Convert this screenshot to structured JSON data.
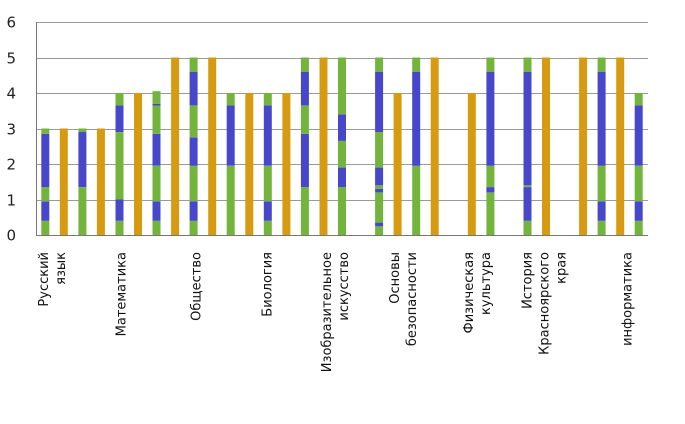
{
  "chart_data": {
    "type": "bar",
    "ylim": [
      0,
      6
    ],
    "yticks": [
      0,
      1,
      2,
      3,
      4,
      5,
      6
    ],
    "grid": true,
    "legend": "none",
    "colors": {
      "green": "#73b43c",
      "blue": "#4747cc",
      "orange": "#d79b12"
    },
    "category_labels": [
      [
        "Русский",
        "язык"
      ],
      [
        "Математика"
      ],
      [
        "Общество"
      ],
      [
        "Биология"
      ],
      [
        "Изобразительное",
        "искусство"
      ],
      [
        "Основы",
        "безопасности"
      ],
      [
        "Физическая",
        "культура"
      ],
      [
        "История",
        "Красноярского",
        "края"
      ],
      [
        "информатика"
      ]
    ],
    "stacked_columns": [
      [
        {
          "c": "green",
          "v": 0.4
        },
        {
          "c": "blue",
          "v": 0.55
        },
        {
          "c": "green",
          "v": 0.4
        },
        {
          "c": "blue",
          "v": 1.5
        },
        {
          "c": "green",
          "v": 0.15
        }
      ],
      [
        {
          "c": "orange",
          "v": 3
        }
      ],
      [
        {
          "c": "green",
          "v": 1.35
        },
        {
          "c": "blue",
          "v": 1.55
        },
        {
          "c": "green",
          "v": 0.1
        }
      ],
      [
        {
          "c": "orange",
          "v": 3
        }
      ],
      [
        {
          "c": "green",
          "v": 0.4
        },
        {
          "c": "blue",
          "v": 0.6
        },
        {
          "c": "green",
          "v": 1.9
        },
        {
          "c": "blue",
          "v": 0.75
        },
        {
          "c": "green",
          "v": 0.35
        }
      ],
      [
        {
          "c": "orange",
          "v": 4
        }
      ],
      [
        {
          "c": "green",
          "v": 0.4
        },
        {
          "c": "blue",
          "v": 0.55
        },
        {
          "c": "green",
          "v": 1.0
        },
        {
          "c": "blue",
          "v": 0.9
        },
        {
          "c": "green",
          "v": 0.8
        },
        {
          "c": "blue",
          "v": 0.05
        },
        {
          "c": "green",
          "v": 0.35
        }
      ],
      [
        {
          "c": "orange",
          "v": 5
        }
      ],
      [
        {
          "c": "green",
          "v": 0.4
        },
        {
          "c": "blue",
          "v": 0.55
        },
        {
          "c": "green",
          "v": 1.0
        },
        {
          "c": "blue",
          "v": 0.8
        },
        {
          "c": "green",
          "v": 0.9
        },
        {
          "c": "blue",
          "v": 0.95
        },
        {
          "c": "green",
          "v": 0.4
        }
      ],
      [
        {
          "c": "orange",
          "v": 5
        }
      ],
      [
        {
          "c": "green",
          "v": 1.95
        },
        {
          "c": "blue",
          "v": 1.7
        },
        {
          "c": "green",
          "v": 0.35
        }
      ],
      [
        {
          "c": "orange",
          "v": 4
        }
      ],
      [
        {
          "c": "green",
          "v": 0.4
        },
        {
          "c": "blue",
          "v": 0.55
        },
        {
          "c": "green",
          "v": 1.0
        },
        {
          "c": "blue",
          "v": 1.7
        },
        {
          "c": "green",
          "v": 0.35
        }
      ],
      [
        {
          "c": "orange",
          "v": 4
        }
      ],
      [
        {
          "c": "green",
          "v": 1.35
        },
        {
          "c": "blue",
          "v": 1.5
        },
        {
          "c": "green",
          "v": 0.8
        },
        {
          "c": "blue",
          "v": 0.95
        },
        {
          "c": "green",
          "v": 0.4
        }
      ],
      [
        {
          "c": "orange",
          "v": 5
        }
      ],
      [
        {
          "c": "green",
          "v": 1.35
        },
        {
          "c": "blue",
          "v": 0.55
        },
        {
          "c": "green",
          "v": 0.75
        },
        {
          "c": "blue",
          "v": 0.75
        },
        {
          "c": "green",
          "v": 1.6
        }
      ],
      [],
      [
        {
          "c": "green",
          "v": 0.25
        },
        {
          "c": "blue",
          "v": 0.1
        },
        {
          "c": "green",
          "v": 0.85
        },
        {
          "c": "blue",
          "v": 0.1
        },
        {
          "c": "green",
          "v": 0.1
        },
        {
          "c": "blue",
          "v": 0.5
        },
        {
          "c": "green",
          "v": 1.0
        },
        {
          "c": "blue",
          "v": 1.7
        },
        {
          "c": "green",
          "v": 0.4
        }
      ],
      [
        {
          "c": "orange",
          "v": 4
        }
      ],
      [
        {
          "c": "green",
          "v": 1.95
        },
        {
          "c": "blue",
          "v": 2.65
        },
        {
          "c": "green",
          "v": 0.4
        }
      ],
      [
        {
          "c": "orange",
          "v": 5
        }
      ],
      [],
      [
        {
          "c": "orange",
          "v": 4
        }
      ],
      [
        {
          "c": "green",
          "v": 1.2
        },
        {
          "c": "blue",
          "v": 0.15
        },
        {
          "c": "green",
          "v": 0.6
        },
        {
          "c": "blue",
          "v": 2.65
        },
        {
          "c": "green",
          "v": 0.4
        }
      ],
      [],
      [
        {
          "c": "green",
          "v": 0.4
        },
        {
          "c": "blue",
          "v": 0.95
        },
        {
          "c": "green",
          "v": 0.05
        },
        {
          "c": "blue",
          "v": 3.2
        },
        {
          "c": "green",
          "v": 0.4
        }
      ],
      [
        {
          "c": "orange",
          "v": 5
        }
      ],
      [],
      [
        {
          "c": "orange",
          "v": 5
        }
      ],
      [
        {
          "c": "green",
          "v": 0.4
        },
        {
          "c": "blue",
          "v": 0.55
        },
        {
          "c": "green",
          "v": 1.0
        },
        {
          "c": "blue",
          "v": 2.65
        },
        {
          "c": "green",
          "v": 0.4
        }
      ],
      [
        {
          "c": "orange",
          "v": 5
        }
      ],
      [
        {
          "c": "green",
          "v": 0.4
        },
        {
          "c": "blue",
          "v": 0.55
        },
        {
          "c": "green",
          "v": 1.0
        },
        {
          "c": "blue",
          "v": 1.7
        },
        {
          "c": "green",
          "v": 0.35
        }
      ]
    ]
  }
}
